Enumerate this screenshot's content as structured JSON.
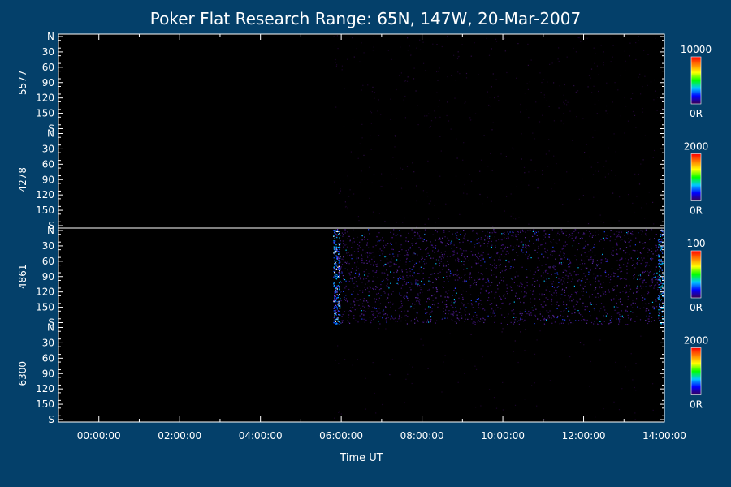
{
  "background_color": "#04406a",
  "chart_data": {
    "type": "heatmap",
    "title": "Poker Flat Research Range: 65N, 147W, 20-Mar-2007",
    "xlabel": "Time UT",
    "x_ticks": [
      "00:00:00",
      "02:00:00",
      "04:00:00",
      "06:00:00",
      "08:00:00",
      "10:00:00",
      "12:00:00",
      "14:00:00"
    ],
    "x_range_hours": [
      -1.0,
      14.0
    ],
    "data_start_hours": 5.8,
    "y_ticks": [
      "N",
      "30",
      "60",
      "90",
      "120",
      "150",
      "S"
    ],
    "y_range_deg": [
      0,
      180
    ],
    "colormap": [
      "#3a0050",
      "#0000ff",
      "#00c8ff",
      "#00ff00",
      "#ffff00",
      "#ff8000",
      "#ff0000"
    ],
    "panels": [
      {
        "wavelength": "5577",
        "scale_max": "10000",
        "scale_min": "0R",
        "mean_intensity_fraction": 0.03
      },
      {
        "wavelength": "4278",
        "scale_max": "2000",
        "scale_min": "0R",
        "mean_intensity_fraction": 0.02
      },
      {
        "wavelength": "4861",
        "scale_max": "100",
        "scale_min": "0R",
        "mean_intensity_fraction": 0.25
      },
      {
        "wavelength": "6300",
        "scale_max": "2000",
        "scale_min": "0R",
        "mean_intensity_fraction": 0.01
      }
    ]
  }
}
